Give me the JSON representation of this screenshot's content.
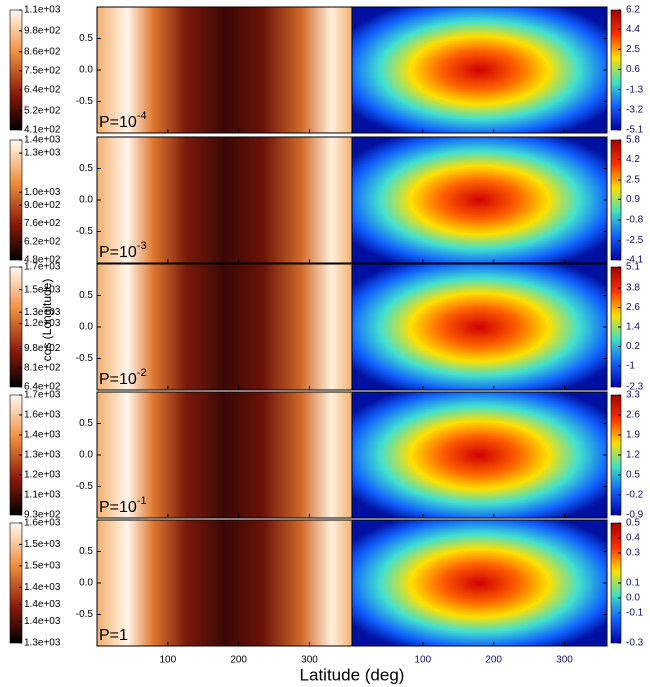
{
  "chart_data": {
    "type": "heatmap",
    "xlabel": "Latitude (deg)",
    "ylabel": "cos (Longitude)",
    "xlim": [
      0,
      360
    ],
    "xticks": [
      100,
      200,
      300
    ],
    "ylim": [
      -1,
      1
    ],
    "yticks": [
      0.5,
      {
        "value": 0,
        "label": "0.0"
      },
      -0.5
    ],
    "panels": [
      {
        "label": "P=10",
        "exponent": "-4",
        "left_colorbar": {
          "clim": [
            410,
            1100
          ],
          "ticks": [
            {
              "value": 1100,
              "label": "1.1e+03"
            },
            {
              "value": 980,
              "label": "9.8e+02"
            },
            {
              "value": 860,
              "label": "8.6e+02"
            },
            {
              "value": 750,
              "label": "7.5e+02"
            },
            {
              "value": 640,
              "label": "6.4e+02"
            },
            {
              "value": 520,
              "label": "5.2e+02"
            },
            {
              "value": 410,
              "label": "4.1e+02"
            }
          ]
        },
        "right_colorbar": {
          "clim": [
            -5.1,
            6.2
          ],
          "ticks": [
            6.2,
            4.4,
            2.5,
            0.6,
            -1.3,
            -3.2,
            -5.1
          ]
        }
      },
      {
        "label": "P=10",
        "exponent": "-3",
        "left_colorbar": {
          "clim": [
            480,
            1400
          ],
          "ticks": [
            {
              "value": 1400,
              "label": "1.4e+03"
            },
            {
              "value": 1300,
              "label": "1.3e+03"
            },
            {
              "value": 1000,
              "label": "1.0e+03"
            },
            {
              "value": 900,
              "label": "9.0e+02"
            },
            {
              "value": 760,
              "label": "7.6e+02"
            },
            {
              "value": 620,
              "label": "6.2e+02"
            },
            {
              "value": 480,
              "label": "4.8e+02"
            }
          ]
        },
        "right_colorbar": {
          "clim": [
            -4.1,
            5.8
          ],
          "ticks": [
            5.8,
            4.2,
            2.5,
            0.9,
            -0.8,
            -2.5,
            -4.1
          ]
        }
      },
      {
        "label": "P=10",
        "exponent": "-2",
        "left_colorbar": {
          "clim": [
            640,
            1700
          ],
          "ticks": [
            {
              "value": 1700,
              "label": "1.7e+03"
            },
            {
              "value": 1500,
              "label": "1.5e+03"
            },
            {
              "value": 1300,
              "label": "1.3e+03"
            },
            {
              "value": 1200,
              "label": "1.2e+03"
            },
            {
              "value": 980,
              "label": "9.8e+02"
            },
            {
              "value": 810,
              "label": "8.1e+02"
            },
            {
              "value": 640,
              "label": "6.4e+02"
            }
          ]
        },
        "right_colorbar": {
          "clim": [
            -2.3,
            5.1
          ],
          "ticks": [
            5.1,
            3.8,
            2.6,
            1.4,
            0.2,
            -1.0,
            -2.3
          ]
        }
      },
      {
        "label": "P=10",
        "exponent": "-1",
        "left_colorbar": {
          "clim": [
            930,
            1700
          ],
          "ticks": [
            {
              "value": 1700,
              "label": "1.7e+03"
            },
            {
              "value": 1572,
              "label": "1.6e+03"
            },
            {
              "value": 1443,
              "label": "1.4e+03"
            },
            {
              "value": 1315,
              "label": "1.3e+03"
            },
            {
              "value": 1187,
              "label": "1.2e+03"
            },
            {
              "value": 1058,
              "label": "1.1e+03"
            },
            {
              "value": 930,
              "label": "9.3e+02"
            }
          ]
        },
        "right_colorbar": {
          "clim": [
            -0.9,
            3.3
          ],
          "ticks": [
            3.3,
            2.6,
            1.9,
            1.2,
            0.5,
            -0.2,
            -0.9
          ]
        }
      },
      {
        "label": "P=1",
        "exponent": null,
        "left_colorbar": {
          "clim": [
            1310,
            1590
          ],
          "ticks": [
            {
              "value": 1590,
              "label": "1.6e+03"
            },
            {
              "value": 1540,
              "label": "1.5e+03"
            },
            {
              "value": 1490,
              "label": "1.5e+03"
            },
            {
              "value": 1440,
              "label": "1.4e+03"
            },
            {
              "value": 1400,
              "label": "1.4e+03"
            },
            {
              "value": 1360,
              "label": "1.4e+03"
            },
            {
              "value": 1310,
              "label": "1.3e+03"
            }
          ]
        },
        "right_colorbar": {
          "clim": [
            -0.3,
            0.5
          ],
          "ticks": [
            0.5,
            0.4,
            0.3,
            0.1,
            {
              "value": 0,
              "label": "0.0"
            },
            -0.1,
            -0.3
          ]
        }
      }
    ]
  }
}
